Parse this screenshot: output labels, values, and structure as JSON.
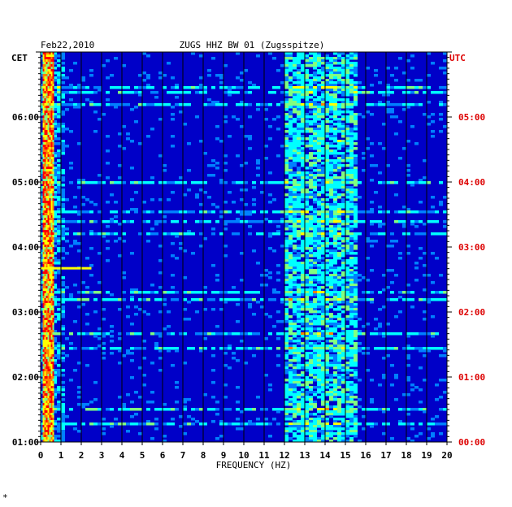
{
  "chart_data": {
    "type": "heatmap",
    "date": "Feb22,2010",
    "title": "ZUGS HHZ BW 01 (Zugsspitze)",
    "xlabel": "FREQUENCY (HZ)",
    "x_ticks": [
      "0",
      "1",
      "2",
      "3",
      "4",
      "5",
      "6",
      "7",
      "8",
      "9",
      "10",
      "11",
      "12",
      "13",
      "14",
      "15",
      "16",
      "17",
      "18",
      "19",
      "20"
    ],
    "xlim": [
      0,
      20
    ],
    "time_range_utc": [
      "00:00",
      "06:00"
    ],
    "left_axis_label": "CET",
    "right_axis_label": "UTC",
    "left_ticks": [
      "06:00",
      "05:00",
      "04:00",
      "03:00",
      "02:00",
      "01:00"
    ],
    "right_ticks": [
      "05:00",
      "04:00",
      "03:00",
      "02:00",
      "01:00",
      "00:00"
    ],
    "colors": {
      "background": "#0000c8",
      "grid": "#000000",
      "utc_text": "#dd0000",
      "colormap": [
        "#00008f",
        "#0000ff",
        "#0080ff",
        "#00ffff",
        "#80ff80",
        "#ffff00",
        "#ff8000",
        "#ff0000"
      ]
    },
    "features": {
      "low_freq_band_hz": [
        0.1,
        0.6
      ],
      "microseism_band_hz": [
        12.0,
        15.5
      ],
      "strong_event_time_utc": "02:40"
    },
    "footnote": "*"
  }
}
